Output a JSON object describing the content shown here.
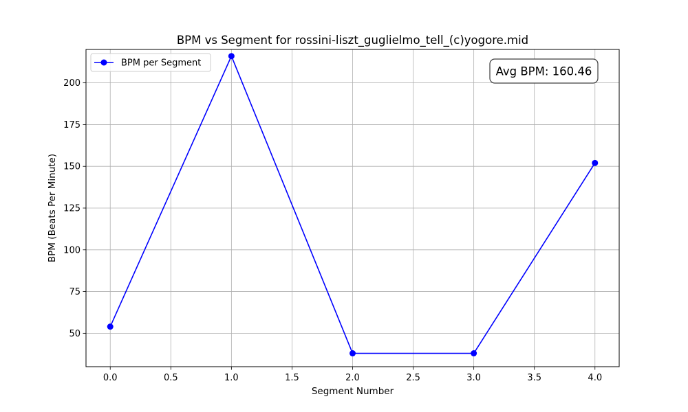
{
  "chart_data": {
    "type": "line",
    "title": "BPM vs Segment for rossini-liszt_guglielmo_tell_(c)yogore.mid",
    "xlabel": "Segment Number",
    "ylabel": "BPM (Beats Per Minute)",
    "xlim": [
      -0.2,
      4.2
    ],
    "ylim": [
      30,
      220
    ],
    "x_ticks": [
      0.0,
      0.5,
      1.0,
      1.5,
      2.0,
      2.5,
      3.0,
      3.5,
      4.0
    ],
    "x_tick_labels": [
      "0.0",
      "0.5",
      "1.0",
      "1.5",
      "2.0",
      "2.5",
      "3.0",
      "3.5",
      "4.0"
    ],
    "y_ticks": [
      50,
      75,
      100,
      125,
      150,
      175,
      200
    ],
    "y_tick_labels": [
      "50",
      "75",
      "100",
      "125",
      "150",
      "175",
      "200"
    ],
    "grid": true,
    "legend_position": "top-left",
    "series": [
      {
        "name": "BPM per Segment",
        "color": "#0000ff",
        "marker": "circle",
        "x": [
          0,
          1,
          2,
          3,
          4
        ],
        "y": [
          54,
          216,
          38,
          38,
          152
        ]
      }
    ],
    "annotation": {
      "text": "Avg BPM: 160.46",
      "position": "top-right"
    }
  }
}
